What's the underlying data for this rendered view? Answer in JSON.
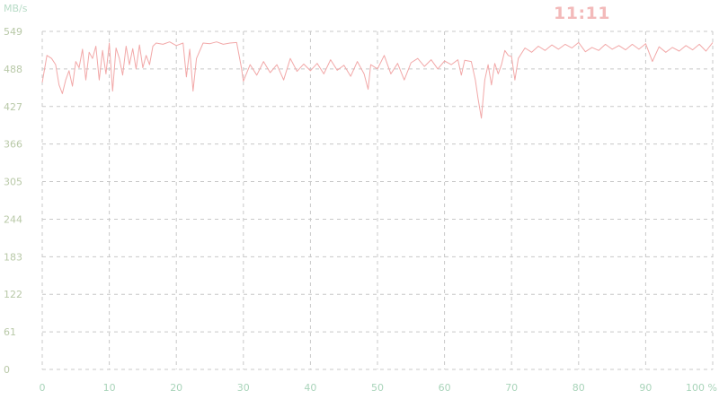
{
  "header": {
    "unit_label": "MB/s",
    "clock": "11:11"
  },
  "colors": {
    "line": "#f2a8a8",
    "grid": "#c8c8c8",
    "y_tick_text": "#b9c9a8",
    "x_tick_text": "#a9d4ba",
    "clock": "#f3baba"
  },
  "chart_data": {
    "type": "line",
    "title": "",
    "xlabel": "",
    "ylabel": "MB/s",
    "xlim": [
      0,
      100
    ],
    "ylim": [
      0,
      549
    ],
    "grid": true,
    "legend": "none",
    "x_ticks": [
      0,
      10,
      20,
      30,
      40,
      50,
      60,
      70,
      80,
      90,
      100
    ],
    "x_tick_labels": [
      "0",
      "10",
      "20",
      "30",
      "40",
      "50",
      "60",
      "70",
      "80",
      "90",
      "100 %"
    ],
    "y_ticks": [
      0,
      61,
      122,
      183,
      244,
      305,
      366,
      427,
      488,
      549
    ],
    "y_tick_labels": [
      "0",
      "61",
      "122",
      "183",
      "244",
      "305",
      "366",
      "427",
      "488",
      "549"
    ],
    "series": [
      {
        "values": [
          [
            0,
            466
          ],
          [
            0.7,
            510
          ],
          [
            1.4,
            505
          ],
          [
            2,
            495
          ],
          [
            2.5,
            462
          ],
          [
            3,
            448
          ],
          [
            3.5,
            470
          ],
          [
            4,
            485
          ],
          [
            4.5,
            460
          ],
          [
            5,
            500
          ],
          [
            5.5,
            490
          ],
          [
            6,
            520
          ],
          [
            6.5,
            470
          ],
          [
            7,
            515
          ],
          [
            7.5,
            505
          ],
          [
            8,
            525
          ],
          [
            8.5,
            470
          ],
          [
            9,
            518
          ],
          [
            9.5,
            480
          ],
          [
            10,
            530
          ],
          [
            10.5,
            452
          ],
          [
            11,
            522
          ],
          [
            11.5,
            505
          ],
          [
            12,
            478
          ],
          [
            12.5,
            525
          ],
          [
            13,
            495
          ],
          [
            13.5,
            521
          ],
          [
            14,
            488
          ],
          [
            14.5,
            527
          ],
          [
            15,
            490
          ],
          [
            15.5,
            510
          ],
          [
            16,
            495
          ],
          [
            16.5,
            525
          ],
          [
            17,
            530
          ],
          [
            18,
            528
          ],
          [
            19,
            532
          ],
          [
            20,
            526
          ],
          [
            21,
            530
          ],
          [
            21.5,
            475
          ],
          [
            22,
            520
          ],
          [
            22.5,
            452
          ],
          [
            23,
            505
          ],
          [
            24,
            530
          ],
          [
            25,
            529
          ],
          [
            26,
            532
          ],
          [
            27,
            528
          ],
          [
            28,
            530
          ],
          [
            29,
            531
          ],
          [
            29.7,
            490
          ],
          [
            30,
            468
          ],
          [
            31,
            495
          ],
          [
            32,
            478
          ],
          [
            33,
            500
          ],
          [
            34,
            482
          ],
          [
            35,
            495
          ],
          [
            36,
            470
          ],
          [
            37,
            505
          ],
          [
            38,
            484
          ],
          [
            39,
            496
          ],
          [
            40,
            485
          ],
          [
            41,
            497
          ],
          [
            42,
            480
          ],
          [
            43,
            503
          ],
          [
            44,
            486
          ],
          [
            45,
            494
          ],
          [
            46,
            476
          ],
          [
            47,
            500
          ],
          [
            48,
            480
          ],
          [
            48.6,
            455
          ],
          [
            49,
            495
          ],
          [
            50,
            488
          ],
          [
            51,
            510
          ],
          [
            52,
            480
          ],
          [
            53,
            497
          ],
          [
            54,
            470
          ],
          [
            55,
            498
          ],
          [
            56,
            505
          ],
          [
            57,
            492
          ],
          [
            58,
            503
          ],
          [
            59,
            488
          ],
          [
            60,
            501
          ],
          [
            61,
            495
          ],
          [
            62,
            503
          ],
          [
            62.5,
            478
          ],
          [
            63,
            502
          ],
          [
            64,
            500
          ],
          [
            64.6,
            470
          ],
          [
            65,
            440
          ],
          [
            65.5,
            408
          ],
          [
            66,
            470
          ],
          [
            66.5,
            495
          ],
          [
            67,
            462
          ],
          [
            67.5,
            497
          ],
          [
            68,
            480
          ],
          [
            68.5,
            495
          ],
          [
            69,
            518
          ],
          [
            69.5,
            510
          ],
          [
            70,
            508
          ],
          [
            70.5,
            470
          ],
          [
            71,
            505
          ],
          [
            72,
            522
          ],
          [
            73,
            515
          ],
          [
            74,
            525
          ],
          [
            75,
            518
          ],
          [
            76,
            527
          ],
          [
            77,
            520
          ],
          [
            78,
            528
          ],
          [
            79,
            522
          ],
          [
            80,
            531
          ],
          [
            81,
            516
          ],
          [
            82,
            523
          ],
          [
            83,
            518
          ],
          [
            84,
            528
          ],
          [
            85,
            520
          ],
          [
            86,
            526
          ],
          [
            87,
            519
          ],
          [
            88,
            528
          ],
          [
            89,
            520
          ],
          [
            90,
            529
          ],
          [
            91,
            500
          ],
          [
            92,
            524
          ],
          [
            93,
            515
          ],
          [
            94,
            523
          ],
          [
            95,
            517
          ],
          [
            96,
            526
          ],
          [
            97,
            519
          ],
          [
            98,
            528
          ],
          [
            99,
            517
          ],
          [
            100,
            531
          ]
        ]
      }
    ]
  }
}
